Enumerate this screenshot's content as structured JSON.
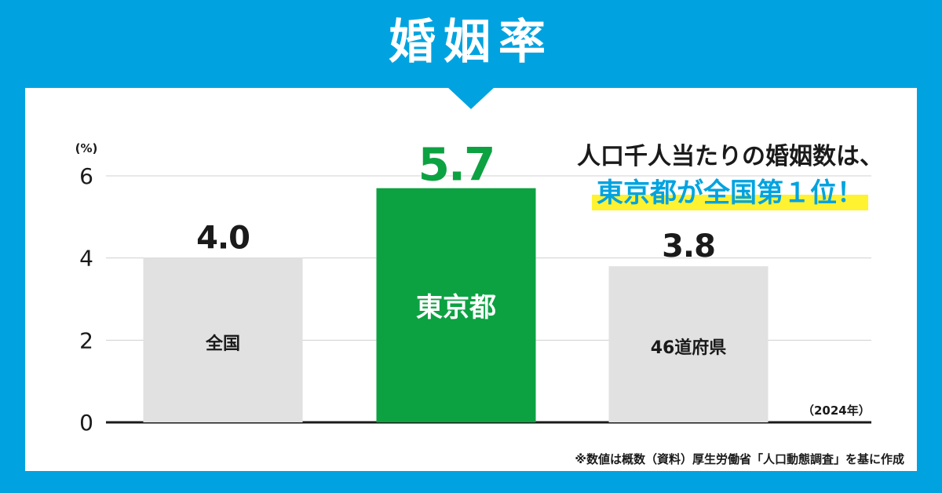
{
  "header": {
    "title": "婚姻率"
  },
  "callout": {
    "line1": "人口千人当たりの婚姻数は、",
    "line2": "東京都が全国第１位！"
  },
  "note": {
    "year": "（2024年）",
    "source": "※数値は概数（資料）厚生労働省「人口動態調査」を基に作成"
  },
  "colors": {
    "background": "#00a3e0",
    "highlight_bar": "#0ca242",
    "default_bar": "#e1e1e1",
    "marker": "#fff231"
  },
  "chart_data": {
    "type": "bar",
    "ylabel": "(%)",
    "ylim": [
      0,
      6
    ],
    "yticks": [
      0,
      2,
      4,
      6
    ],
    "grid": true,
    "categories": [
      "全国",
      "東京都",
      "46道府県"
    ],
    "values": [
      4.0,
      5.7,
      3.8
    ],
    "value_labels": [
      "4.0",
      "5.7",
      "3.8"
    ],
    "highlight_index": 1
  }
}
